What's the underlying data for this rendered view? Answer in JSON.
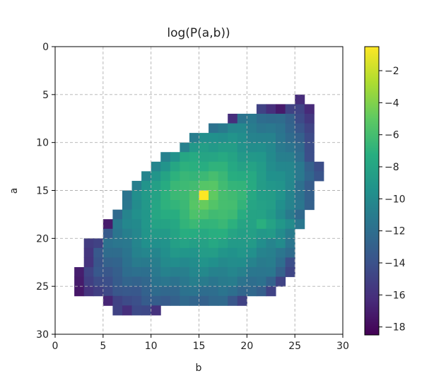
{
  "chart_data": {
    "type": "heatmap",
    "title": "log(P(a,b))",
    "xlabel": "b",
    "ylabel": "a",
    "xlim": [
      0,
      30
    ],
    "ylim": [
      30,
      0
    ],
    "y_inverted": true,
    "xticks": [
      0,
      5,
      10,
      15,
      20,
      25,
      30
    ],
    "yticks": [
      0,
      5,
      10,
      15,
      20,
      25,
      30
    ],
    "grid": true,
    "colormap": "viridis",
    "color_range": [
      -18.5,
      -0.5
    ],
    "colorbar_ticks": [
      -2,
      -4,
      -6,
      -8,
      -10,
      -12,
      -14,
      -16,
      -18
    ],
    "peak": {
      "b": 15,
      "a": 15,
      "value": -0.5
    },
    "cell_rows": {
      "5": [
        [
          25,
          25
        ]
      ],
      "6": [
        [
          21,
          26
        ]
      ],
      "7": [
        [
          18,
          26
        ]
      ],
      "8": [
        [
          16,
          26
        ]
      ],
      "9": [
        [
          14,
          26
        ]
      ],
      "10": [
        [
          13,
          26
        ]
      ],
      "11": [
        [
          11,
          26
        ]
      ],
      "12": [
        [
          10,
          27
        ]
      ],
      "13": [
        [
          9,
          27
        ]
      ],
      "14": [
        [
          8,
          26
        ]
      ],
      "15": [
        [
          7,
          26
        ]
      ],
      "16": [
        [
          7,
          26
        ]
      ],
      "17": [
        [
          6,
          25
        ]
      ],
      "18": [
        [
          5,
          25
        ]
      ],
      "19": [
        [
          5,
          24
        ]
      ],
      "20": [
        [
          3,
          24
        ]
      ],
      "21": [
        [
          3,
          24
        ]
      ],
      "22": [
        [
          3,
          24
        ]
      ],
      "23": [
        [
          2,
          24
        ]
      ],
      "24": [
        [
          2,
          23
        ]
      ],
      "25": [
        [
          2,
          22
        ]
      ],
      "26": [
        [
          5,
          19
        ]
      ],
      "27": [
        [
          6,
          10
        ]
      ]
    },
    "low_cells": [
      [
        22,
        6
      ],
      [
        23,
        6
      ],
      [
        24,
        6
      ],
      [
        18,
        7
      ],
      [
        21,
        6
      ],
      [
        4,
        20
      ],
      [
        5,
        18
      ],
      [
        6,
        27
      ],
      [
        7,
        27
      ]
    ]
  }
}
